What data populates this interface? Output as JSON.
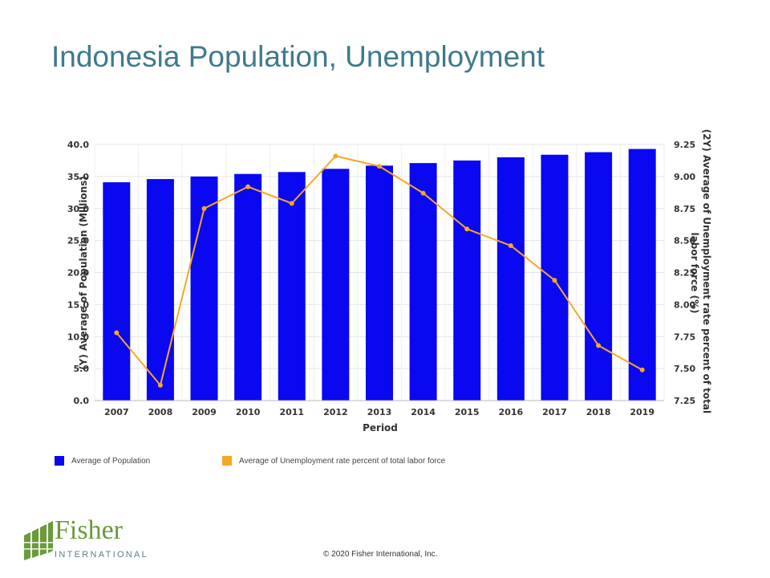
{
  "slide": {
    "title": "Indonesia Population, Unemployment",
    "copyright": "© 2020 Fisher International,  Inc.",
    "logo": {
      "word": "Fisher",
      "sub": "INTERNATIONAL",
      "color": "#6a9a3a"
    }
  },
  "chart_data": {
    "type": "bar",
    "categories": [
      "2007",
      "2008",
      "2009",
      "2010",
      "2011",
      "2012",
      "2013",
      "2014",
      "2015",
      "2016",
      "2017",
      "2018",
      "2019"
    ],
    "series": [
      {
        "name": "Average of Population",
        "type": "bar",
        "axis": "y",
        "values": [
          34.1,
          34.6,
          35.0,
          35.4,
          35.7,
          36.2,
          36.7,
          37.1,
          37.5,
          38.0,
          38.4,
          38.8,
          39.3
        ],
        "color": "#0a08f0"
      },
      {
        "name": "Average of Unemployment rate percent of total labor force",
        "type": "line",
        "axis": "y2",
        "values": [
          7.78,
          7.37,
          8.75,
          8.92,
          8.79,
          9.16,
          9.08,
          8.87,
          8.59,
          8.46,
          8.19,
          7.68,
          7.49
        ],
        "color": "#f7a823"
      }
    ],
    "xlabel": "Period",
    "ylabel": "(Y) Average of Population (Millions)",
    "y2label": "(2Y) Average of Unemployment rate percent of total labor force (%)",
    "y2label_lines": [
      "(2Y) Average of Unemployment rate percent of total",
      "labor force (%)"
    ],
    "ylim": [
      0,
      40
    ],
    "yticks": [
      "0.0",
      "5.0",
      "10.0",
      "15.0",
      "20.0",
      "25.0",
      "30.0",
      "35.0",
      "40.0"
    ],
    "y2lim": [
      7.25,
      9.25
    ],
    "y2ticks": [
      "7.25",
      "7.50",
      "7.75",
      "8.00",
      "8.25",
      "8.50",
      "8.75",
      "9.00",
      "9.25"
    ],
    "grid": true,
    "legend_position": "bottom-left"
  }
}
